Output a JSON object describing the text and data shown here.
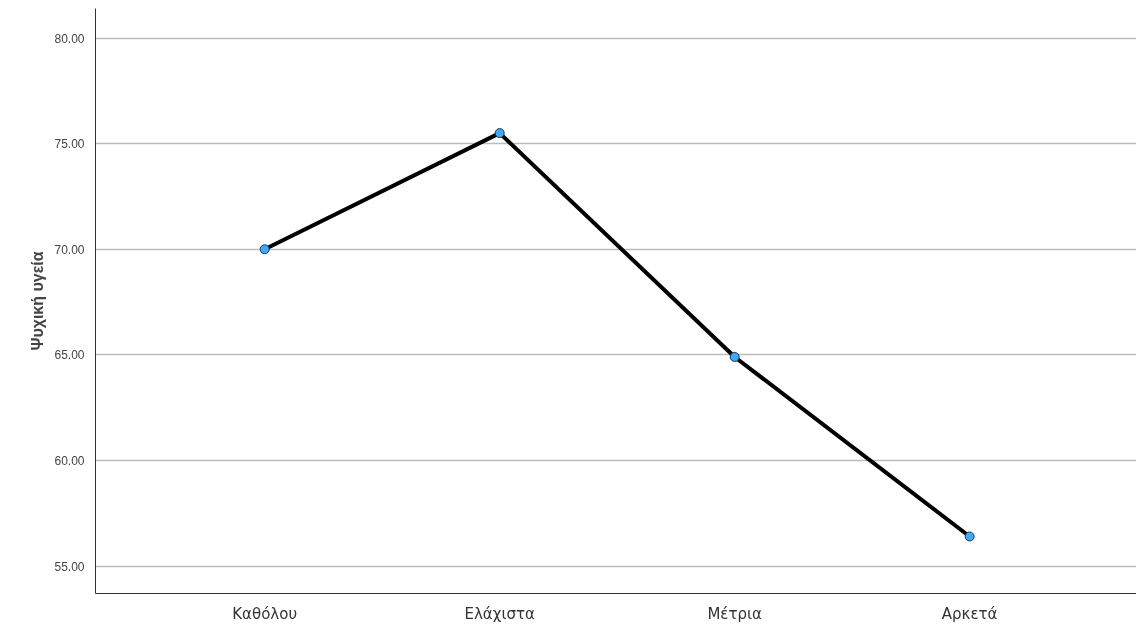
{
  "chart_data": {
    "type": "line",
    "ylabel": "Ψυχική υγεία",
    "categories": [
      "Καθόλου",
      "Ελάχιστα",
      "Μέτρια",
      "Αρκετά"
    ],
    "series": [
      {
        "color": "#000000",
        "values": [
          70.0,
          75.5,
          64.9,
          56.4
        ]
      }
    ],
    "ylim": [
      53.7,
      81.4
    ],
    "yticks": [
      {
        "value": 55,
        "label": "55.00"
      },
      {
        "value": 60,
        "label": "60.00"
      },
      {
        "value": 65,
        "label": "65.00"
      },
      {
        "value": 70,
        "label": "70.00"
      },
      {
        "value": 75,
        "label": "75.00"
      },
      {
        "value": 80,
        "label": "80.00"
      }
    ],
    "grid": "y",
    "marker": "circle",
    "line_style": "solid"
  }
}
